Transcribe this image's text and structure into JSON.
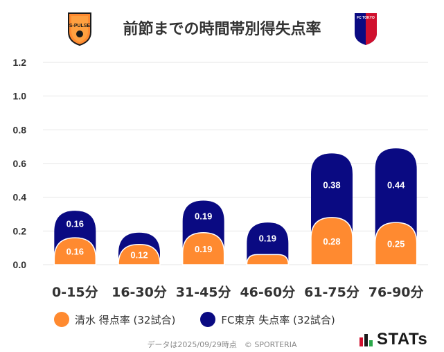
{
  "header": {
    "title": "前節までの時間帯別得失点率",
    "left_crest_text": "S-PULSE",
    "right_crest_text": "FC TOKYO"
  },
  "colors": {
    "shimizu": "#FF8A30",
    "fctokyo": "#0A0A82",
    "grid": "#E6E6E6"
  },
  "chart_data": {
    "type": "bar",
    "title": "前節までの時間帯別得失点率",
    "categories": [
      "0-15分",
      "16-30分",
      "31-45分",
      "46-60分",
      "61-75分",
      "76-90分"
    ],
    "series": [
      {
        "name": "清水 得点率 (32試合)",
        "values": [
          0.16,
          0.12,
          0.19,
          0.06,
          0.28,
          0.25
        ],
        "labels": [
          "0.16",
          "0.12",
          "0.19",
          "",
          "0.28",
          "0.25"
        ]
      },
      {
        "name": "FC東京 失点率 (32試合)",
        "values": [
          0.16,
          0.07,
          0.19,
          0.19,
          0.38,
          0.44
        ],
        "labels": [
          "0.16",
          "",
          "0.19",
          "0.19",
          "0.38",
          "0.44"
        ]
      }
    ],
    "stacked": true,
    "ylim": [
      0,
      1.2
    ],
    "yticks": [
      "0.0",
      "0.2",
      "0.4",
      "0.6",
      "0.8",
      "1.0",
      "1.2"
    ],
    "xlabel": "",
    "ylabel": ""
  },
  "legend": {
    "items": [
      {
        "label": "清水 得点率 (32試合)"
      },
      {
        "label": "FC東京 失点率 (32試合)"
      }
    ]
  },
  "footer": {
    "note": "データは2025/09/29時点　© SPORTERIA",
    "logo_text": "STATs"
  }
}
